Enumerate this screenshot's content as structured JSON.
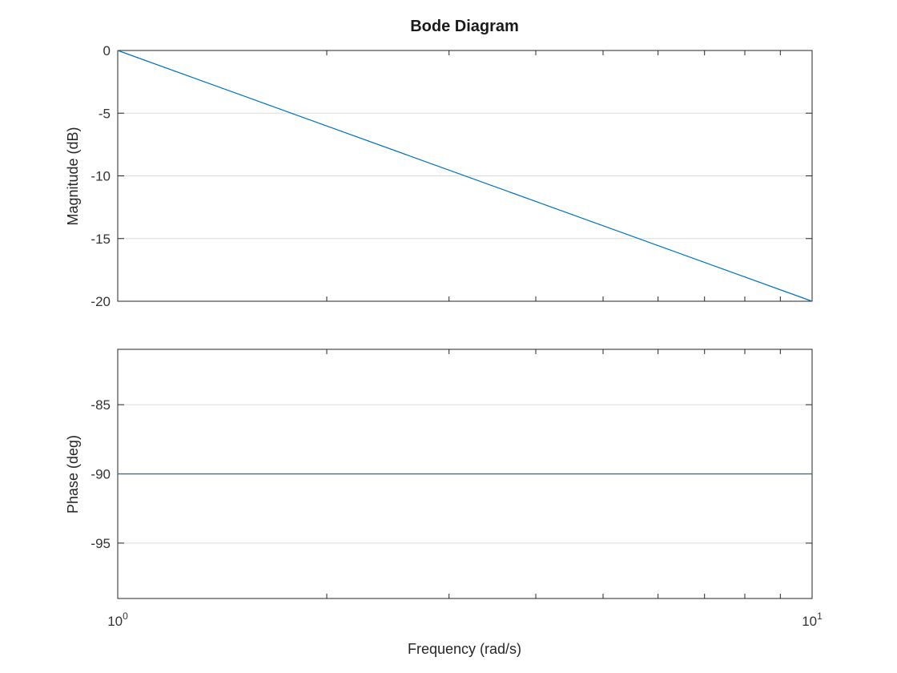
{
  "chart_data": [
    {
      "type": "line",
      "title": "Bode Diagram",
      "ylabel": "Magnitude (dB)",
      "xscale": "log",
      "xlim": [
        1,
        10
      ],
      "ylim": [
        -20,
        0
      ],
      "yticks": [
        0,
        -5,
        -10,
        -15,
        -20
      ],
      "ytick_labels": [
        "0",
        "-5",
        "-10",
        "-15",
        "-20"
      ],
      "grid": true,
      "series": [
        {
          "x": [
            1,
            10
          ],
          "y": [
            0,
            -20
          ],
          "color": "#0072BD"
        }
      ]
    },
    {
      "type": "line",
      "ylabel": "Phase (deg)",
      "xlabel": "Frequency (rad/s)",
      "xscale": "log",
      "xlim": [
        1,
        10
      ],
      "ylim": [
        -99,
        -81
      ],
      "yticks": [
        -85,
        -90,
        -95
      ],
      "ytick_labels": [
        "-85",
        "-90",
        "-95"
      ],
      "xtick_labels": [
        {
          "base": "10",
          "exp": "0"
        },
        {
          "base": "10",
          "exp": "1"
        }
      ],
      "grid": true,
      "series": [
        {
          "x": [
            1,
            10
          ],
          "y": [
            -90,
            -90
          ],
          "color": "#0072BD"
        }
      ]
    }
  ]
}
